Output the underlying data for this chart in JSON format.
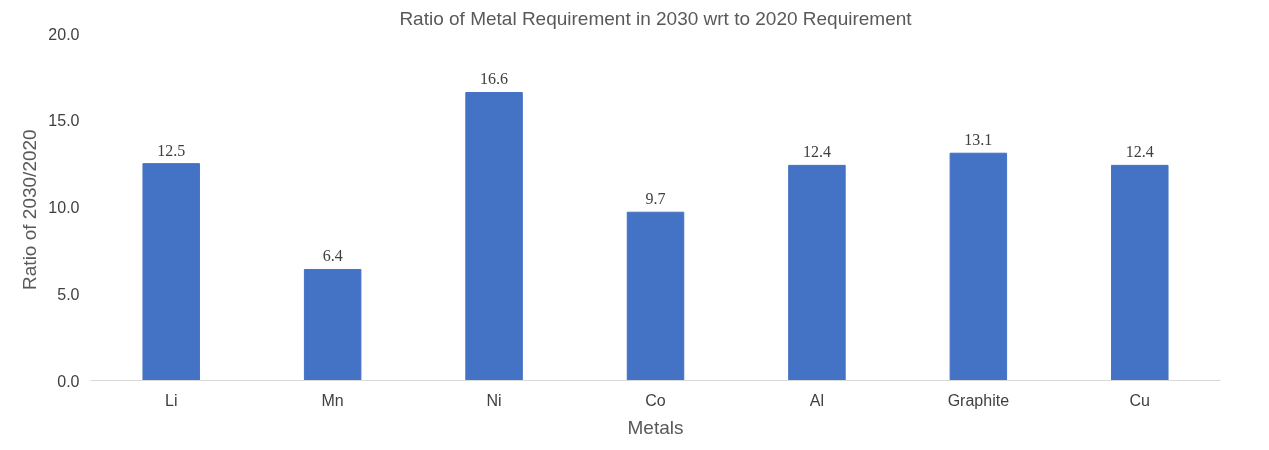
{
  "chart_data": {
    "type": "bar",
    "title": "Ratio of Metal Requirement in 2030 wrt to 2020 Requirement",
    "xlabel": "Metals",
    "ylabel": "Ratio of  2030/2020",
    "categories": [
      "Li",
      "Mn",
      "Ni",
      "Co",
      "Al",
      "Graphite",
      "Cu"
    ],
    "values": [
      12.5,
      6.4,
      16.6,
      9.7,
      12.4,
      13.1,
      12.4
    ],
    "color": "#4472c4",
    "ylim": [
      0,
      20
    ],
    "yticks": [
      {
        "value": 0,
        "label": "0.0"
      },
      {
        "value": 5,
        "label": "5.0"
      },
      {
        "value": 10,
        "label": "10.0"
      },
      {
        "value": 15,
        "label": "15.0"
      },
      {
        "value": 20,
        "label": "20.0"
      }
    ],
    "grid": false,
    "data_labels": true
  }
}
